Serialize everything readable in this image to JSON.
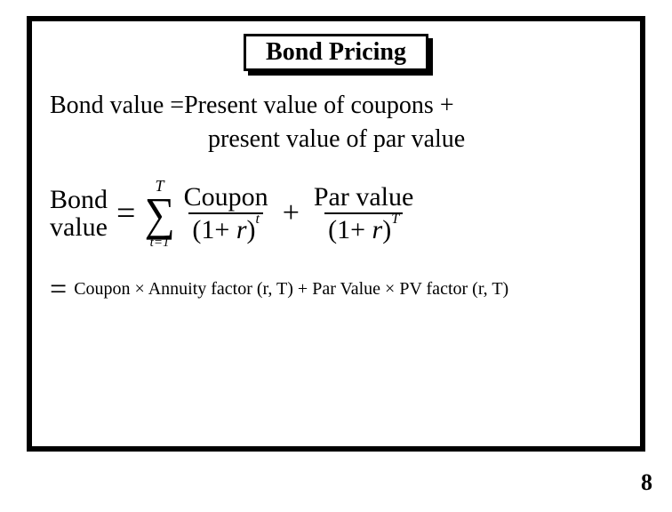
{
  "slide": {
    "title": "Bond Pricing",
    "definition_line1": "Bond value =Present value of coupons +",
    "definition_line2": "present value of par value",
    "formula": {
      "lhs_line1": "Bond",
      "lhs_line2": "value",
      "eq": "=",
      "sum_upper": "T",
      "sum_lower": "t=1",
      "frac1_num": "Coupon",
      "frac1_den_open": "(1",
      "frac1_den_plus": "+",
      "frac1_den_r": "r",
      "frac1_den_close": ")",
      "frac1_den_exp": "t",
      "plus": "+",
      "frac2_num": "Par value",
      "frac2_den_open": "(1",
      "frac2_den_plus": "+",
      "frac2_den_r": "r",
      "frac2_den_close": ")",
      "frac2_den_exp": "T"
    },
    "second_formula": {
      "eq": "=",
      "text": "Coupon × Annuity factor (r, T) + Par Value × PV factor (r, T)"
    },
    "page_number": "8"
  }
}
